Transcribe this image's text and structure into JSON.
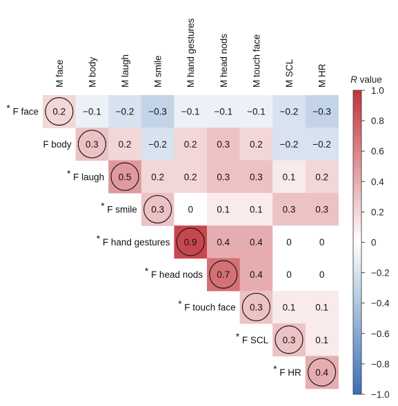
{
  "chart_data": {
    "type": "heatmap",
    "columns": [
      "M face",
      "M body",
      "M laugh",
      "M smile",
      "M hand gestures",
      "M head nods",
      "M touch face",
      "M SCL",
      "M HR"
    ],
    "rows": [
      {
        "label": "F face",
        "starred": true
      },
      {
        "label": "F body",
        "starred": false
      },
      {
        "label": "F laugh",
        "starred": true
      },
      {
        "label": "F smile",
        "starred": true
      },
      {
        "label": "F hand gestures",
        "starred": true
      },
      {
        "label": "F head nods",
        "starred": true
      },
      {
        "label": "F touch face",
        "starred": true
      },
      {
        "label": "F SCL",
        "starred": true
      },
      {
        "label": "F HR",
        "starred": true
      }
    ],
    "star_symbol": "*",
    "values": [
      [
        0.2,
        -0.1,
        -0.2,
        -0.3,
        -0.1,
        -0.1,
        -0.1,
        -0.2,
        -0.3
      ],
      [
        null,
        0.3,
        0.2,
        -0.2,
        0.2,
        0.3,
        0.2,
        -0.2,
        -0.2
      ],
      [
        null,
        null,
        0.5,
        0.2,
        0.2,
        0.3,
        0.3,
        0.1,
        0.2
      ],
      [
        null,
        null,
        null,
        0.3,
        0,
        0.1,
        0.1,
        0.3,
        0.3
      ],
      [
        null,
        null,
        null,
        null,
        0.9,
        0.4,
        0.4,
        0,
        0
      ],
      [
        null,
        null,
        null,
        null,
        null,
        0.7,
        0.4,
        0,
        0
      ],
      [
        null,
        null,
        null,
        null,
        null,
        null,
        0.3,
        0.1,
        0.1
      ],
      [
        null,
        null,
        null,
        null,
        null,
        null,
        null,
        0.3,
        0.1
      ],
      [
        null,
        null,
        null,
        null,
        null,
        null,
        null,
        null,
        0.4
      ]
    ],
    "cell_labels": [
      [
        "0.2",
        "−0.1",
        "−0.2",
        "−0.3",
        "−0.1",
        "−0.1",
        "−0.1",
        "−0.2",
        "−0.3"
      ],
      [
        null,
        "0.3",
        "0.2",
        "−0.2",
        "0.2",
        "0.3",
        "0.2",
        "−0.2",
        "−0.2"
      ],
      [
        null,
        null,
        "0.5",
        "0.2",
        "0.2",
        "0.3",
        "0.3",
        "0.1",
        "0.2"
      ],
      [
        null,
        null,
        null,
        "0.3",
        "0",
        "0.1",
        "0.1",
        "0.3",
        "0.3"
      ],
      [
        null,
        null,
        null,
        null,
        "0.9",
        "0.4",
        "0.4",
        "0",
        "0"
      ],
      [
        null,
        null,
        null,
        null,
        null,
        "0.7",
        "0.4",
        "0",
        "0"
      ],
      [
        null,
        null,
        null,
        null,
        null,
        null,
        "0.3",
        "0.1",
        "0.1"
      ],
      [
        null,
        null,
        null,
        null,
        null,
        null,
        null,
        "0.3",
        "0.1"
      ],
      [
        null,
        null,
        null,
        null,
        null,
        null,
        null,
        null,
        "0.4"
      ]
    ],
    "diagonal_circled": true,
    "colorbar": {
      "title_italic": "R",
      "title_rest": " value",
      "range": [
        -1.0,
        1.0
      ],
      "ticks": [
        1.0,
        0.8,
        0.6,
        0.4,
        0.2,
        0,
        -0.2,
        -0.4,
        -0.6,
        -0.8,
        -1.0
      ],
      "tick_labels": [
        "1.0",
        "0.8",
        "0.6",
        "0.4",
        "0.2",
        "0",
        "−0.2",
        "−0.4",
        "−0.6",
        "−0.8",
        "−1.0"
      ],
      "colors": {
        "neg": "#3a6fb3",
        "mid": "#ffffff",
        "pos": "#c1333b"
      }
    },
    "legend_placement": "right"
  }
}
